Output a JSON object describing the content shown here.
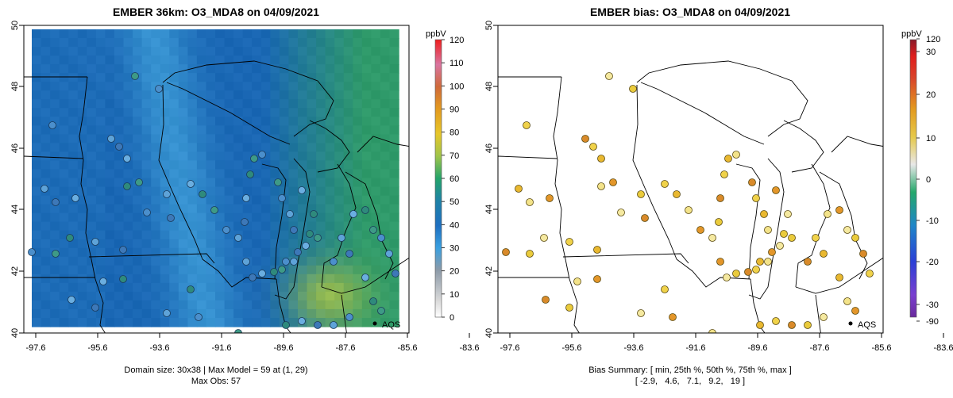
{
  "chart_data": [
    {
      "type": "heatmap",
      "title": "EMBER 36km: O3_MDA8 on 04/09/2021",
      "x_ticks": [
        "-97.6",
        "-95.6",
        "-93.6",
        "-91.6",
        "-89.6",
        "-87.6",
        "-85.6",
        "-83.6"
      ],
      "y_ticks": [
        "40",
        "42",
        "44",
        "46",
        "48",
        "50"
      ],
      "xlim": [
        -98.3,
        -83.0
      ],
      "ylim": [
        40.0,
        50.0
      ],
      "colorbar": {
        "label": "ppbV",
        "ticks": [
          "0",
          "10",
          "20",
          "30",
          "40",
          "50",
          "60",
          "70",
          "80",
          "90",
          "100",
          "110",
          "120"
        ],
        "range": [
          0,
          120
        ]
      },
      "legend_marker": "AQS",
      "footer": [
        "Domain size: 30x38 | Max Model = 59 at (1, 29)",
        "Max Obs: 57"
      ],
      "colors": {
        "low": "#1a67b4",
        "mid": "#3a97d4",
        "high": "#2f9a6a",
        "peak": "#9fbf4a"
      }
    },
    {
      "type": "scatter",
      "title": "EMBER bias: O3_MDA8 on 04/09/2021",
      "x_ticks": [
        "-97.6",
        "-95.6",
        "-93.6",
        "-91.6",
        "-89.6",
        "-87.6",
        "-85.6",
        "-83.6"
      ],
      "y_ticks": [
        "40",
        "42",
        "44",
        "46",
        "48",
        "50"
      ],
      "xlim": [
        -98.3,
        -83.0
      ],
      "ylim": [
        40.0,
        50.0
      ],
      "colorbar": {
        "label": "ppbV",
        "ticks": [
          "-90",
          "-30",
          "-20",
          "-10",
          "0",
          "10",
          "20",
          "30",
          "120"
        ]
      },
      "legend_marker": "AQS",
      "footer": [
        "Bias Summary: [ min, 25th %, 50th %, 75th %, max ]",
        "[ -2.9,   4.6,   7.1,   9.2,   19 ]"
      ],
      "bias_summary": {
        "min": -2.9,
        "p25": 4.6,
        "p50": 7.1,
        "p75": 9.2,
        "max": 19
      }
    }
  ]
}
